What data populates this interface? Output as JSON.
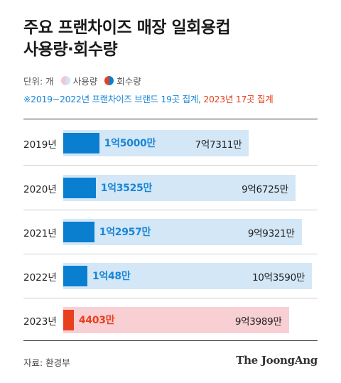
{
  "title": {
    "line1": "주요 프랜차이즈 매장 일회용컵",
    "line2": "사용량·회수량"
  },
  "legend": {
    "unit": "단위: 개",
    "usage": "사용량",
    "recovery": "회수량"
  },
  "note": {
    "part1": "※2019~2022년 프랜차이즈 브랜드 19곳 집계, ",
    "part2": "2023년 17곳 집계"
  },
  "colors": {
    "usage_bar": "#d3e7f7",
    "usage_bar_2023": "#f8cfd3",
    "recovery_bar": "#0a7fd0",
    "recovery_bar_2023": "#e8401e",
    "recovery_label": "#1b86d6",
    "recovery_label_2023": "#e8401e"
  },
  "source": "자료: 환경부",
  "brand": "The JoongAng",
  "chart_data": {
    "type": "bar",
    "orientation": "horizontal",
    "categories": [
      "2019년",
      "2020년",
      "2021년",
      "2022년",
      "2023년"
    ],
    "series": [
      {
        "name": "사용량",
        "values": [
          773110000,
          967250000,
          993210000,
          1035900000,
          939890000
        ],
        "labels": [
          "7억7311만",
          "9억6725만",
          "9억9321만",
          "10억3590만",
          "9억3989만"
        ]
      },
      {
        "name": "회수량",
        "values": [
          150000000,
          135250000,
          129570000,
          100480000,
          44030000
        ],
        "labels": [
          "1억5000만",
          "1억3525만",
          "1억2957만",
          "1억48만",
          "4403만"
        ]
      }
    ],
    "grid": false,
    "legend_position": "top-left"
  }
}
